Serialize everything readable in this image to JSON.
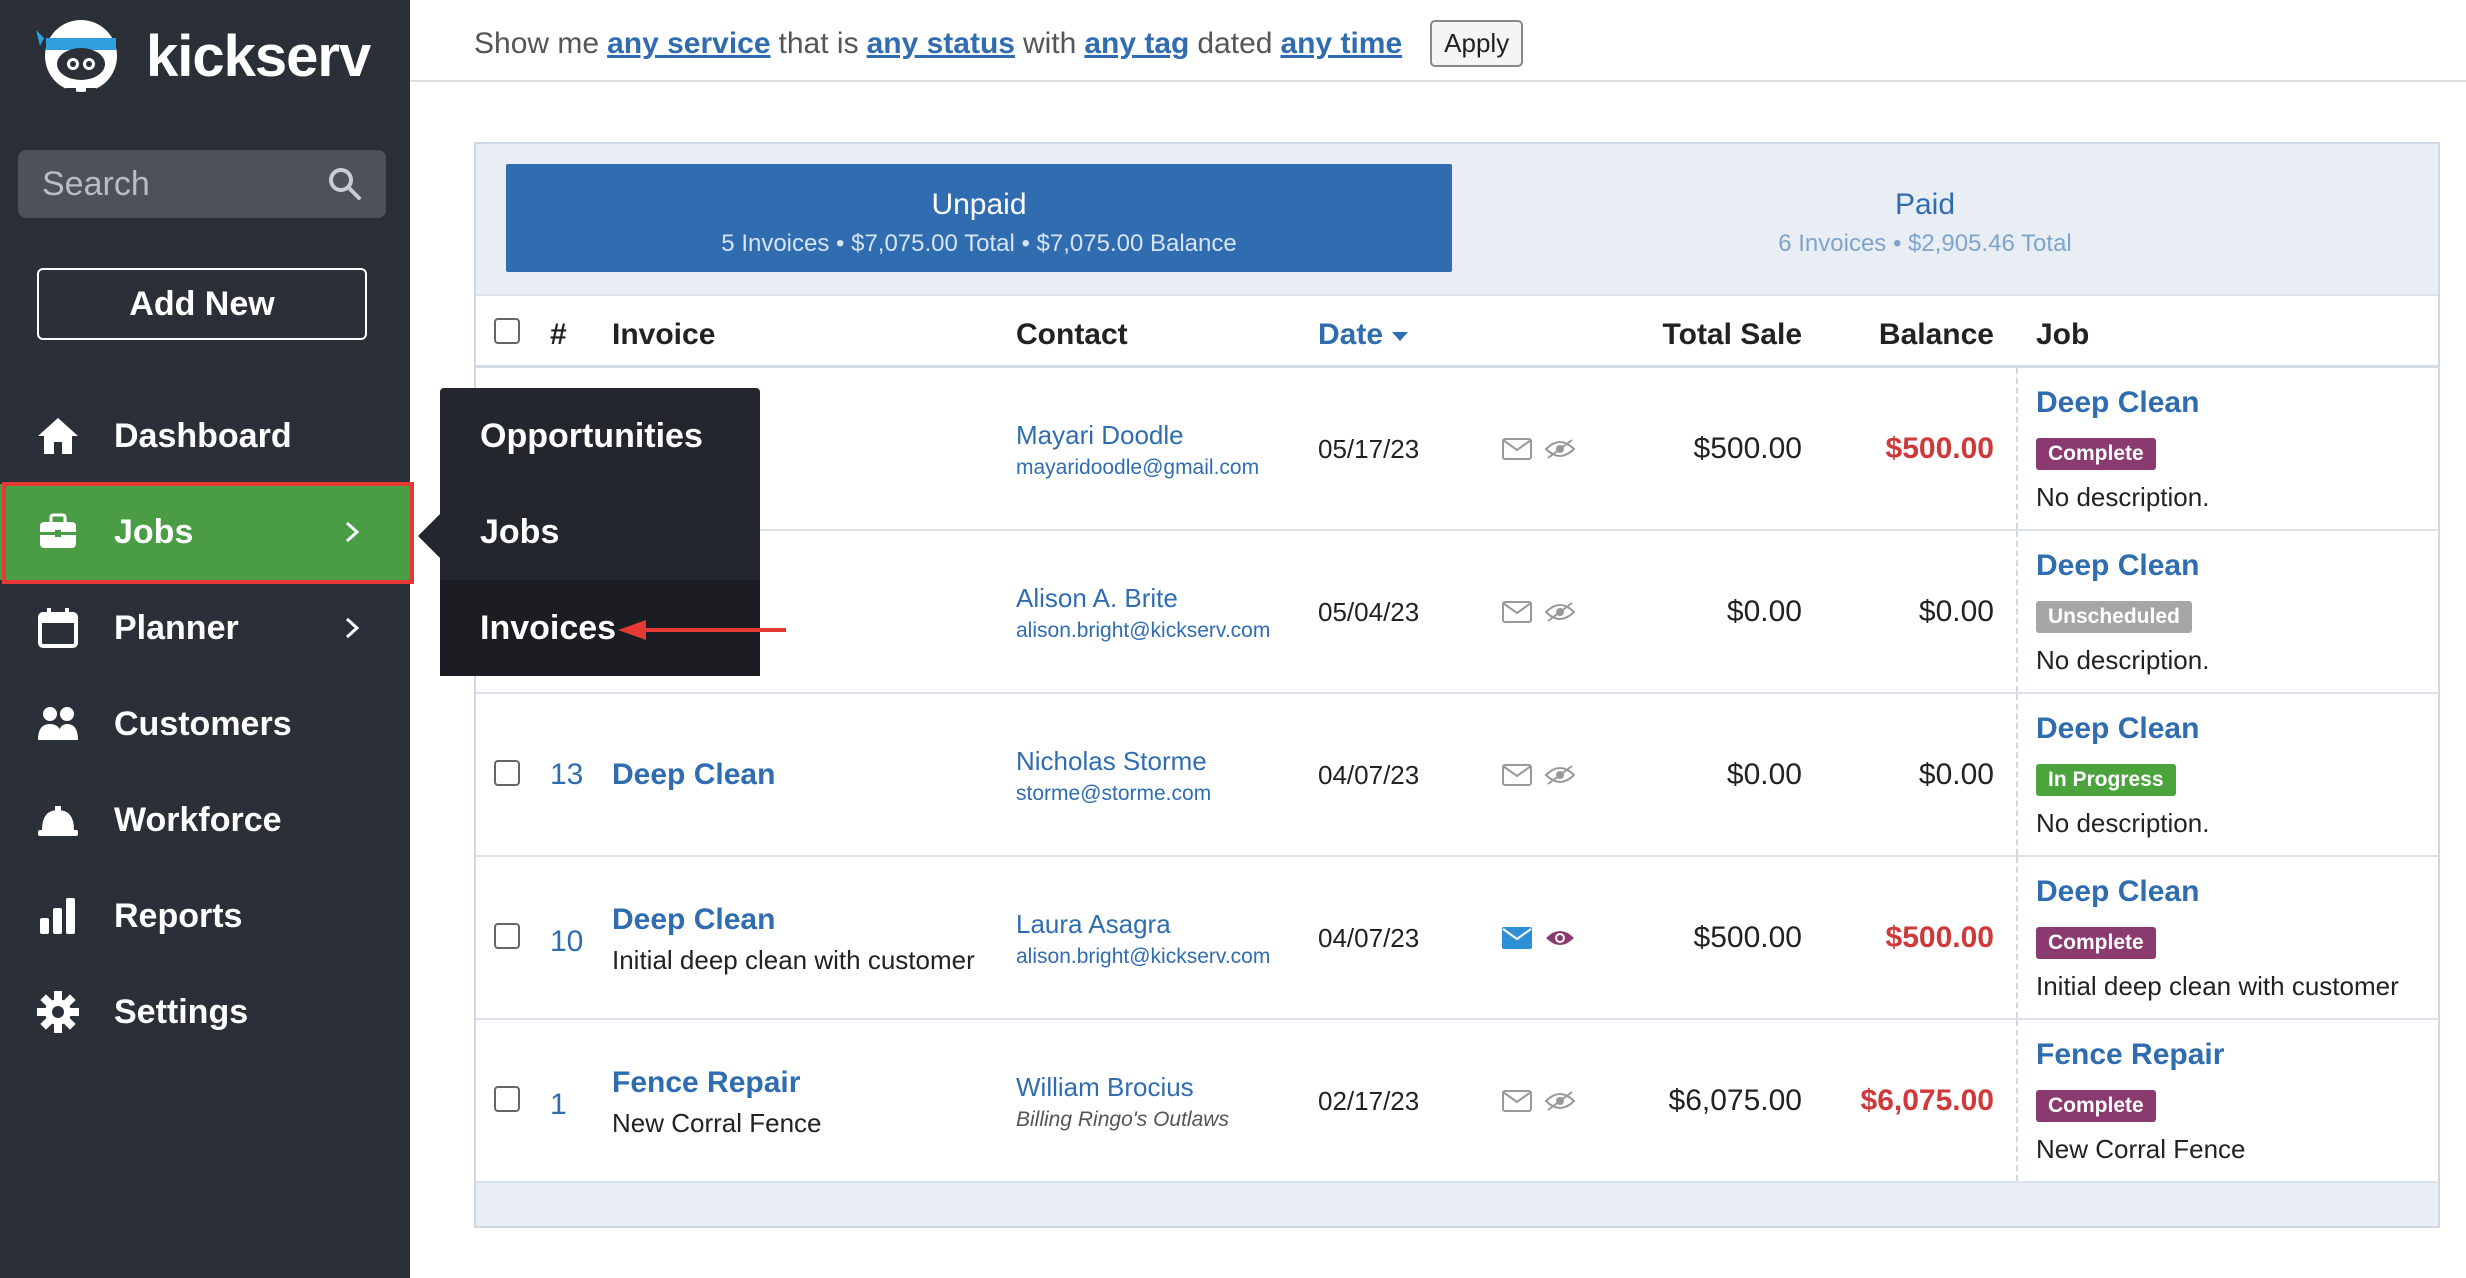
{
  "app": {
    "name": "kickserv"
  },
  "sidebar": {
    "search_placeholder": "Search",
    "add_new": "Add New",
    "items": [
      {
        "label": "Dashboard",
        "icon": "home-icon"
      },
      {
        "label": "Jobs",
        "icon": "briefcase-icon",
        "active": true
      },
      {
        "label": "Planner",
        "icon": "calendar-icon"
      },
      {
        "label": "Customers",
        "icon": "users-icon"
      },
      {
        "label": "Workforce",
        "icon": "hardhat-icon"
      },
      {
        "label": "Reports",
        "icon": "bar-chart-icon"
      },
      {
        "label": "Settings",
        "icon": "gear-icon"
      }
    ]
  },
  "flyout": {
    "items": [
      {
        "label": "Opportunities"
      },
      {
        "label": "Jobs"
      },
      {
        "label": "Invoices"
      }
    ]
  },
  "filter": {
    "prefix": "Show me",
    "service": "any service",
    "text_that_is": "that is",
    "status": "any status",
    "text_with": "with",
    "tag": "any tag",
    "text_dated": "dated",
    "time": "any time",
    "apply": "Apply"
  },
  "tabs": {
    "unpaid": {
      "title": "Unpaid",
      "summary": "5 Invoices • $7,075.00 Total • $7,075.00 Balance"
    },
    "paid": {
      "title": "Paid",
      "summary": "6 Invoices • $2,905.46 Total"
    }
  },
  "table": {
    "headers": {
      "num": "#",
      "invoice": "Invoice",
      "contact": "Contact",
      "date": "Date",
      "total": "Total Sale",
      "balance": "Balance",
      "job": "Job"
    },
    "rows": [
      {
        "num": "",
        "invoice": "",
        "desc": "",
        "contact": "Mayari Doodle",
        "email": "mayaridoodle@gmail.com",
        "date": "05/17/23",
        "total": "$500.00",
        "balance": "$500.00",
        "balance_red": true,
        "job": "Deep Clean",
        "status": "Complete",
        "job_desc": "No description."
      },
      {
        "num": "",
        "invoice": "",
        "desc": "",
        "contact": "Alison A. Brite",
        "email": "alison.bright@kickserv.com",
        "date": "05/04/23",
        "total": "$0.00",
        "balance": "$0.00",
        "balance_red": false,
        "job": "Deep Clean",
        "status": "Unscheduled",
        "job_desc": "No description."
      },
      {
        "num": "13",
        "invoice": "Deep Clean",
        "desc": "",
        "contact": "Nicholas Storme",
        "email": "storme@storme.com",
        "date": "04/07/23",
        "total": "$0.00",
        "balance": "$0.00",
        "balance_red": false,
        "job": "Deep Clean",
        "status": "In Progress",
        "job_desc": "No description."
      },
      {
        "num": "10",
        "invoice": "Deep Clean",
        "desc": "Initial deep clean with customer",
        "contact": "Laura Asagra",
        "email": "alison.bright@kickserv.com",
        "date": "04/07/23",
        "total": "$500.00",
        "balance": "$500.00",
        "balance_red": true,
        "job": "Deep Clean",
        "status": "Complete",
        "job_desc": "Initial deep clean with customer"
      },
      {
        "num": "1",
        "invoice": "Fence Repair",
        "desc": "New Corral Fence",
        "contact": "William Brocius",
        "email_prefix": "Billing",
        "email": "Ringo's Outlaws",
        "date": "02/17/23",
        "total": "$6,075.00",
        "balance": "$6,075.00",
        "balance_red": true,
        "job": "Fence Repair",
        "status": "Complete",
        "job_desc": "New Corral Fence"
      }
    ]
  },
  "colors": {
    "sidebar": "#2b2f38",
    "active": "#4a9c45",
    "link": "#2f6db0",
    "red": "#d0393b",
    "complete": "#8b3a6f"
  }
}
